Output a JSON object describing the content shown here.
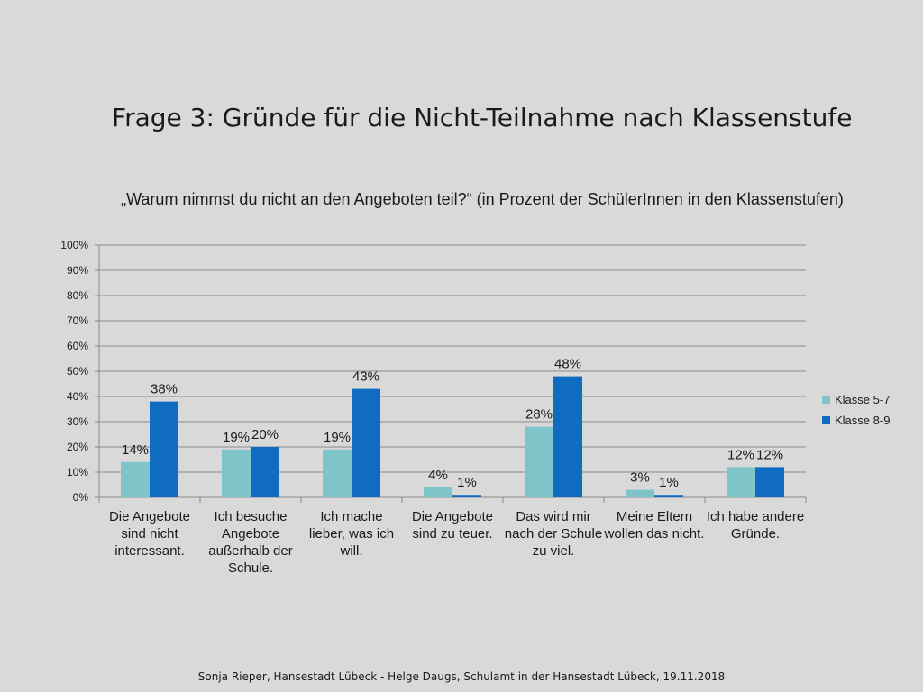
{
  "slide": {
    "title": "Frage 3: Gründe für die Nicht-Teilnahme nach Klassenstufe",
    "footer": "Sonja Rieper, Hansestadt Lübeck  - Helge Daugs, Schulamt in der Hansestadt Lübeck, 19.11.2018"
  },
  "chart_data": {
    "type": "bar",
    "title": "„Warum nimmst du nicht an den Angeboten teil?“ (in Prozent der SchülerInnen in den Klassenstufen)",
    "categories": [
      "Die Angebote sind nicht interessant.",
      "Ich besuche Angebote außerhalb der Schule.",
      "Ich mache lieber, was ich will.",
      "Die Angebote sind zu teuer.",
      "Das wird mir nach der Schule zu viel.",
      "Meine Eltern wollen das nicht.",
      "Ich habe andere Gründe."
    ],
    "series": [
      {
        "name": "Klasse 5-7",
        "color": "#7fc4c9",
        "values": [
          14,
          19,
          19,
          4,
          28,
          3,
          12
        ]
      },
      {
        "name": "Klasse 8-9",
        "color": "#0f6cc0",
        "values": [
          38,
          20,
          43,
          1,
          48,
          1,
          12
        ]
      }
    ],
    "y_ticks": [
      "0%",
      "10%",
      "20%",
      "30%",
      "40%",
      "50%",
      "60%",
      "70%",
      "80%",
      "90%",
      "100%"
    ],
    "ylim": [
      0,
      100
    ],
    "value_suffix": "%",
    "grid": true,
    "legend_position": "right"
  }
}
